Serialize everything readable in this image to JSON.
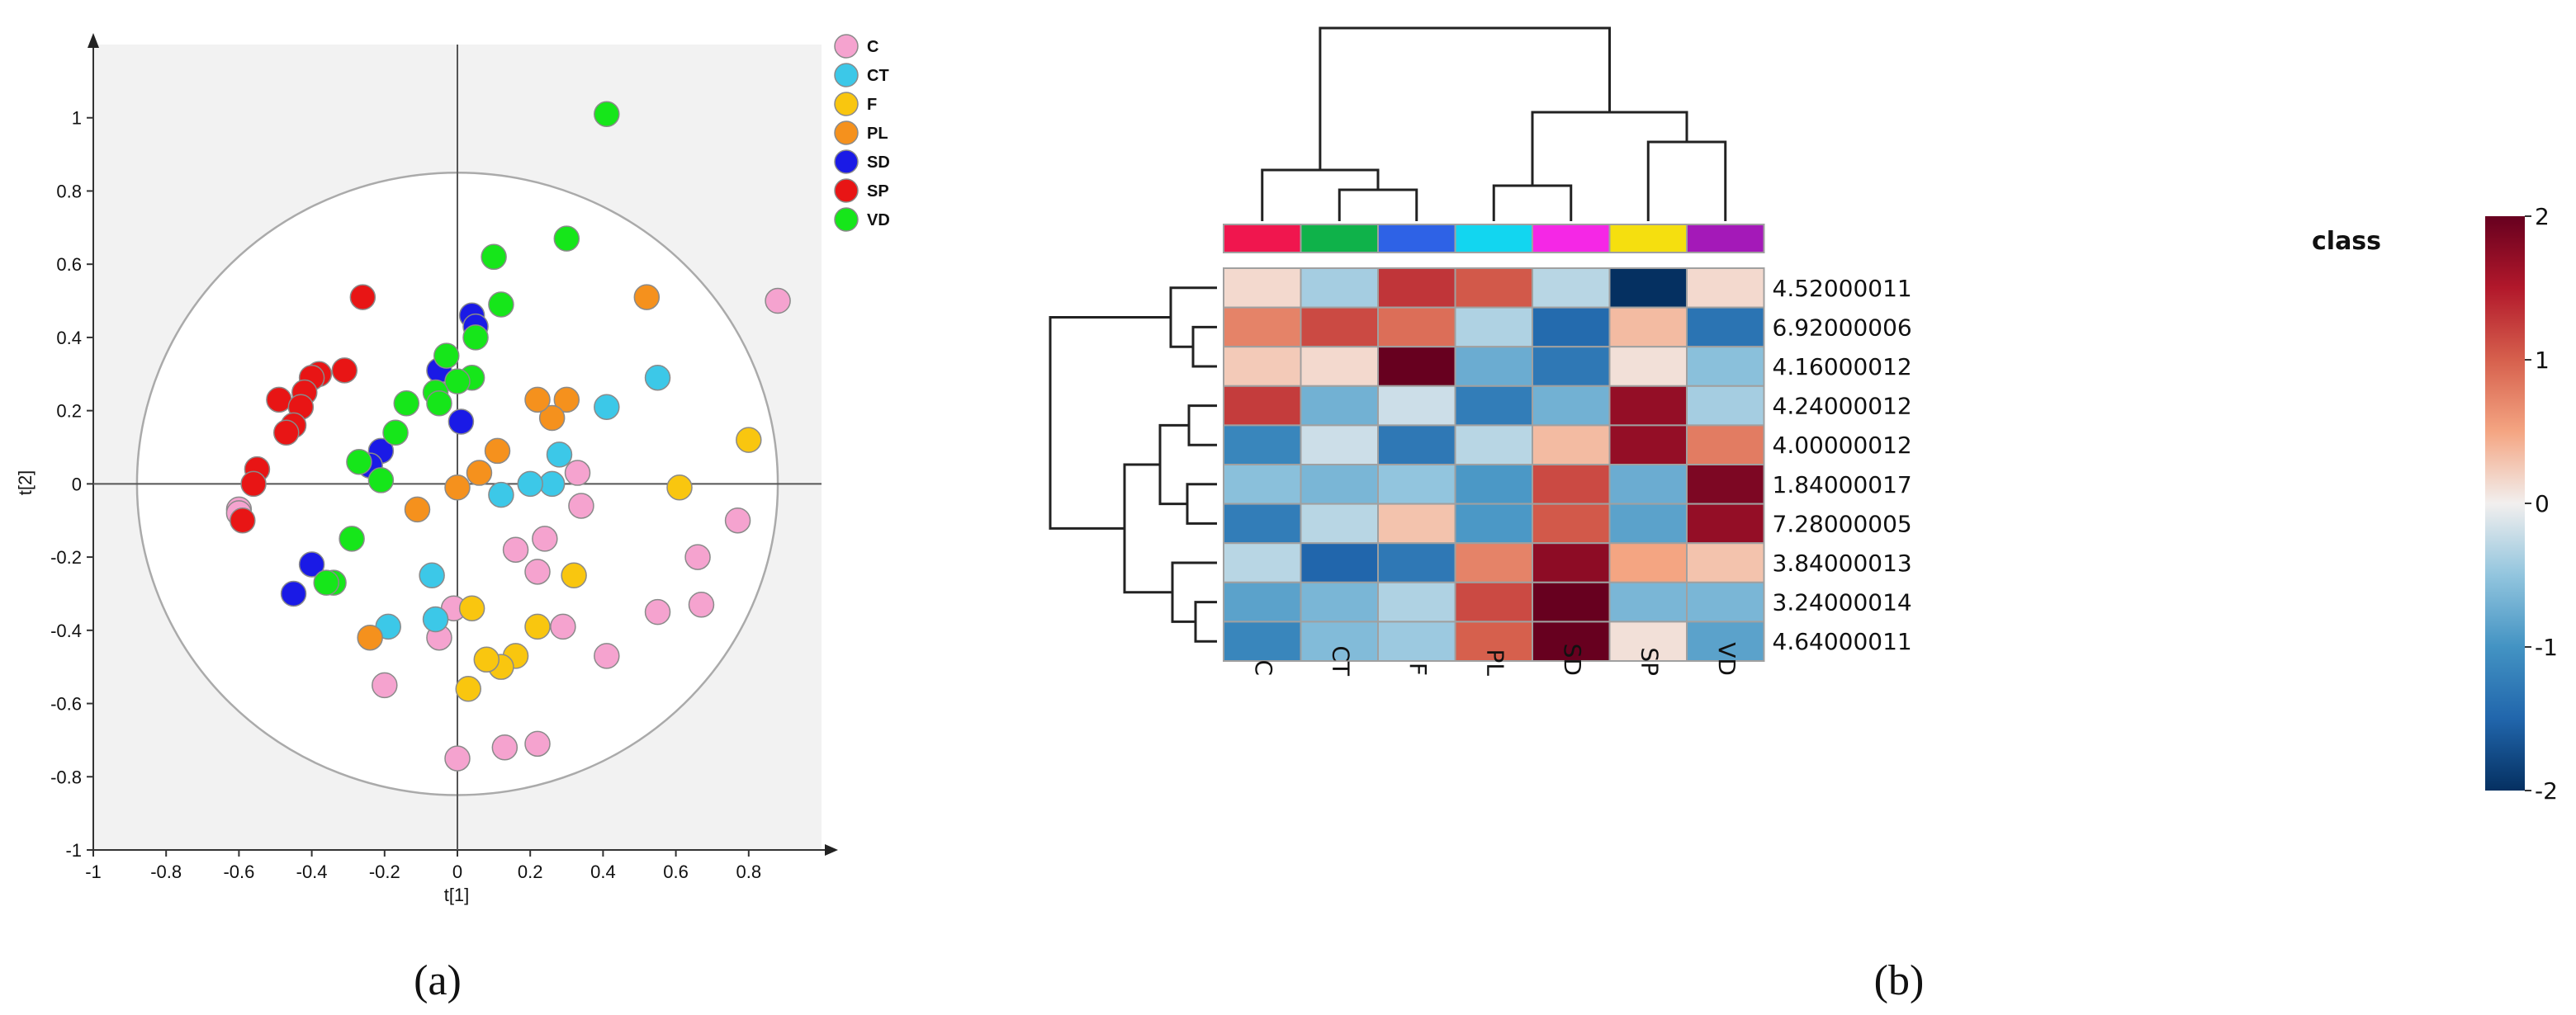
{
  "chart_data": [
    {
      "type": "scatter",
      "panel_label": "(a)",
      "xlabel": "t[1]",
      "ylabel": "t[2]",
      "xlim": [
        -1,
        1
      ],
      "ylim": [
        -1,
        1.2
      ],
      "xticks": [
        -1,
        -0.8,
        -0.6,
        -0.4,
        -0.2,
        0,
        0.2,
        0.4,
        0.6,
        0.8
      ],
      "yticks": [
        -1,
        -0.8,
        -0.6,
        -0.4,
        -0.2,
        0,
        0.2,
        0.4,
        0.6,
        0.8,
        1
      ],
      "xtick_labels": [
        "-1",
        "-0.8",
        "-0.6",
        "-0.4",
        "-0.2",
        "0",
        "0.2",
        "0.4",
        "0.6",
        "0.8"
      ],
      "ytick_labels": [
        "-1",
        "-0.8",
        "-0.6",
        "-0.4",
        "-0.2",
        "0",
        "0.2",
        "0.4",
        "0.6",
        "0.8",
        "1"
      ],
      "ellipse_radius": [
        0.88,
        0.85
      ],
      "legend_position": "top-right",
      "series": [
        {
          "name": "C",
          "color": "#f5a3cf",
          "points": [
            [
              0.88,
              0.5
            ],
            [
              0.77,
              -0.1
            ],
            [
              0.67,
              -0.33
            ],
            [
              0.66,
              -0.2
            ],
            [
              0.55,
              -0.35
            ],
            [
              0.41,
              -0.47
            ],
            [
              0.34,
              -0.06
            ],
            [
              0.33,
              0.03
            ],
            [
              0.29,
              -0.39
            ],
            [
              0.22,
              -0.24
            ],
            [
              0.22,
              -0.71
            ],
            [
              0.24,
              -0.15
            ],
            [
              0.16,
              -0.18
            ],
            [
              0.13,
              -0.72
            ],
            [
              -0.05,
              -0.42
            ],
            [
              -0.2,
              -0.55
            ],
            [
              -0.01,
              -0.34
            ],
            [
              0.0,
              -0.75
            ],
            [
              -0.6,
              -0.07
            ],
            [
              -0.6,
              -0.08
            ]
          ]
        },
        {
          "name": "CT",
          "color": "#3cc8e8",
          "points": [
            [
              0.55,
              0.29
            ],
            [
              0.41,
              0.21
            ],
            [
              0.28,
              0.08
            ],
            [
              0.26,
              0.0
            ],
            [
              0.2,
              0.0
            ],
            [
              0.12,
              -0.03
            ],
            [
              -0.07,
              -0.25
            ],
            [
              -0.06,
              -0.37
            ],
            [
              -0.19,
              -0.39
            ]
          ]
        },
        {
          "name": "F",
          "color": "#f9c60f",
          "points": [
            [
              0.8,
              0.12
            ],
            [
              0.61,
              -0.01
            ],
            [
              0.32,
              -0.25
            ],
            [
              0.22,
              -0.39
            ],
            [
              0.16,
              -0.47
            ],
            [
              0.12,
              -0.5
            ],
            [
              0.08,
              -0.48
            ],
            [
              0.04,
              -0.34
            ],
            [
              0.03,
              -0.56
            ]
          ]
        },
        {
          "name": "PL",
          "color": "#f5911d",
          "points": [
            [
              0.52,
              0.51
            ],
            [
              0.3,
              0.23
            ],
            [
              0.26,
              0.18
            ],
            [
              0.22,
              0.23
            ],
            [
              0.11,
              0.09
            ],
            [
              0.06,
              0.03
            ],
            [
              0.0,
              -0.01
            ],
            [
              -0.11,
              -0.07
            ],
            [
              -0.24,
              -0.42
            ]
          ]
        },
        {
          "name": "SD",
          "color": "#1a1ae6",
          "points": [
            [
              0.04,
              0.46
            ],
            [
              0.05,
              0.43
            ],
            [
              -0.05,
              0.31
            ],
            [
              0.01,
              0.17
            ],
            [
              -0.21,
              0.09
            ],
            [
              -0.24,
              0.05
            ],
            [
              -0.4,
              -0.22
            ],
            [
              -0.45,
              -0.3
            ]
          ]
        },
        {
          "name": "SP",
          "color": "#e81515",
          "points": [
            [
              -0.26,
              0.51
            ],
            [
              -0.31,
              0.31
            ],
            [
              -0.38,
              0.3
            ],
            [
              -0.4,
              0.29
            ],
            [
              -0.42,
              0.25
            ],
            [
              -0.49,
              0.23
            ],
            [
              -0.43,
              0.21
            ],
            [
              -0.45,
              0.16
            ],
            [
              -0.47,
              0.14
            ],
            [
              -0.55,
              0.04
            ],
            [
              -0.56,
              0.0
            ],
            [
              -0.59,
              -0.1
            ]
          ]
        },
        {
          "name": "VD",
          "color": "#16e61a",
          "points": [
            [
              0.41,
              1.01
            ],
            [
              0.3,
              0.67
            ],
            [
              0.1,
              0.62
            ],
            [
              0.12,
              0.49
            ],
            [
              0.05,
              0.4
            ],
            [
              0.04,
              0.29
            ],
            [
              -0.03,
              0.35
            ],
            [
              0.0,
              0.28
            ],
            [
              -0.06,
              0.25
            ],
            [
              -0.05,
              0.22
            ],
            [
              -0.14,
              0.22
            ],
            [
              -0.17,
              0.14
            ],
            [
              -0.27,
              0.06
            ],
            [
              -0.21,
              0.01
            ],
            [
              -0.29,
              -0.15
            ],
            [
              -0.34,
              -0.27
            ],
            [
              -0.36,
              -0.27
            ]
          ]
        }
      ]
    },
    {
      "type": "heatmap",
      "panel_label": "(b)",
      "columns": [
        "C",
        "CT",
        "F",
        "PL",
        "SD",
        "SP",
        "VD"
      ],
      "rows": [
        "4.52000011",
        "6.92000006",
        "4.16000012",
        "4.24000012",
        "4.00000012",
        "1.84000017",
        "7.28000005",
        "3.84000013",
        "3.24000014",
        "4.64000011"
      ],
      "values": [
        [
          0.15,
          -0.4,
          1.3,
          1.05,
          -0.3,
          -2.0,
          0.15
        ],
        [
          0.75,
          1.15,
          0.9,
          -0.35,
          -1.45,
          0.35,
          -1.35
        ],
        [
          0.25,
          0.15,
          2.15,
          -0.75,
          -1.3,
          0.1,
          -0.55
        ],
        [
          1.25,
          -0.7,
          -0.2,
          -1.25,
          -0.7,
          1.7,
          -0.4
        ],
        [
          -1.15,
          -0.2,
          -1.3,
          -0.3,
          0.35,
          1.7,
          0.8
        ],
        [
          -0.55,
          -0.65,
          -0.5,
          -0.95,
          1.15,
          -0.75,
          1.85
        ],
        [
          -1.25,
          -0.3,
          0.3,
          -0.95,
          1.05,
          -0.85,
          1.7
        ],
        [
          -0.3,
          -1.5,
          -1.3,
          0.75,
          1.75,
          0.5,
          0.3
        ],
        [
          -0.85,
          -0.65,
          -0.35,
          1.15,
          2.0,
          -0.65,
          -0.65
        ],
        [
          -1.15,
          -0.6,
          -0.45,
          1.0,
          2.0,
          0.1,
          -0.85
        ]
      ],
      "class_label": "class",
      "class_colors": [
        "#f0164e",
        "#0fb24a",
        "#2e62e6",
        "#12d6f0",
        "#f527e6",
        "#f5df0f",
        "#a419b8"
      ],
      "colorbar_range": [
        -2,
        2
      ],
      "colorbar_ticks": [
        "2",
        "1",
        "0",
        "-1",
        "-2"
      ],
      "col_dendrogram_order": "((C,(CT,F)),((PL,SD),(SP,VD)))",
      "row_dendrogram_order": "((4.52000011,(6.92000006,4.16000012)),(((4.24000012,4.00000012),(1.84000017,7.28000005)),(3.84000013,(3.24000014,4.64000011))))"
    }
  ]
}
